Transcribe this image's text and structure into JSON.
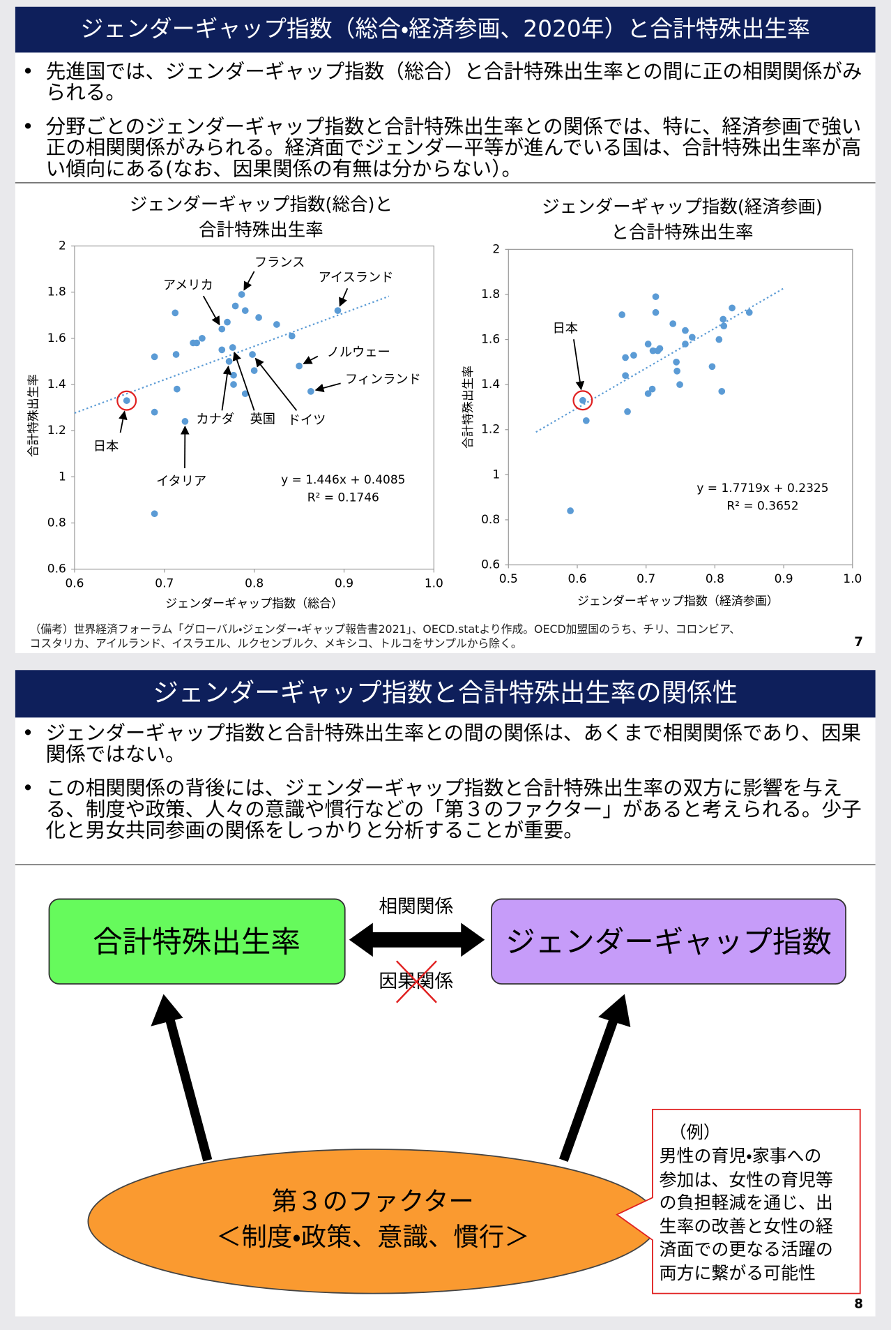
{
  "slide1": {
    "title": "ジェンダーギャップ指数（総合・経済参画、2020年）と合計特殊出生率",
    "bullets": [
      "先進国では、ジェンダーギャップ指数（総合）と合計特殊出生率との間に正の相関関係がみられる。",
      "分野ごとのジェンダーギャップ指数と合計特殊出生率との関係では、特に、経済参画で強い正の相関関係がみられる。経済面でジェンダー平等が進んでいる国は、合計特殊出生率が高い傾向にある(なお、因果関係の有無は分からない）。"
    ],
    "note": "（備考）世界経済フォーラム「グローバル・ジェンダー・ギャップ報告書2021」、OECD.statより作成。OECD加盟国のうち、チリ、コロンビア、\nコスタリカ、アイルランド、イスラエル、ルクセンブルク、メキシコ、トルコをサンプルから除く。",
    "page": "7"
  },
  "chart_data": [
    {
      "type": "scatter",
      "title": "ジェンダーギャップ指数(総合)と\n合計特殊出生率",
      "x_label": "ジェンダーギャップ指数（総合）",
      "y_label": "合計特殊出生率",
      "color": "#5b9bd5",
      "x": [
        0.658,
        0.689,
        0.689,
        0.689,
        0.712,
        0.713,
        0.714,
        0.723,
        0.732,
        0.736,
        0.742,
        0.764,
        0.77,
        0.764,
        0.772,
        0.776,
        0.777,
        0.777,
        0.779,
        0.786,
        0.79,
        0.79,
        0.798,
        0.8,
        0.805,
        0.825,
        0.842,
        0.85,
        0.863,
        0.893
      ],
      "values": [
        1.33,
        1.52,
        1.28,
        0.84,
        1.71,
        1.53,
        1.38,
        1.24,
        1.58,
        1.58,
        1.6,
        1.64,
        1.67,
        1.55,
        1.5,
        1.56,
        1.44,
        1.4,
        1.74,
        1.79,
        1.72,
        1.36,
        1.53,
        1.46,
        1.69,
        1.66,
        1.61,
        1.48,
        1.37,
        1.72
      ],
      "xlim": [
        0.6,
        1.0
      ],
      "ylim": [
        0.6,
        2
      ],
      "xticks": [
        0.6,
        0.7,
        0.8,
        0.9,
        {
          "value": 1,
          "label": "1.0"
        }
      ],
      "yticks": [
        0.6,
        0.8,
        1,
        1.2,
        1.4,
        1.6,
        1.8,
        2
      ],
      "grid": false,
      "trend": {
        "slope": 1.446,
        "intercept": 0.4085,
        "x": [
          0.6,
          0.95
        ]
      },
      "equation": "y = 1.446x + 0.4085",
      "r2": "R² = 0.1746",
      "annotations": [
        "日本",
        "イタリア",
        "アメリカ",
        "フランス",
        "アイスランド",
        "ノルウェー",
        "フィンランド",
        "カナダ",
        "英国",
        "ドイツ"
      ]
    },
    {
      "type": "scatter",
      "title": "ジェンダーギャップ指数(経済参画)\nと合計特殊出生率",
      "x_label": "ジェンダーギャップ指数（経済参画）",
      "y_label": "合計特殊出生率",
      "color": "#5b9bd5",
      "x": [
        0.608,
        0.59,
        0.613,
        0.665,
        0.67,
        0.67,
        0.673,
        0.682,
        0.703,
        0.703,
        0.71,
        0.709,
        0.714,
        0.714,
        0.717,
        0.72,
        0.739,
        0.744,
        0.745,
        0.749,
        0.757,
        0.757,
        0.767,
        0.796,
        0.806,
        0.81,
        0.812,
        0.813,
        0.825,
        0.85
      ],
      "values": [
        1.33,
        0.84,
        1.24,
        1.71,
        1.44,
        1.52,
        1.28,
        1.53,
        1.36,
        1.58,
        1.55,
        1.38,
        1.79,
        1.72,
        1.55,
        1.56,
        1.67,
        1.5,
        1.46,
        1.4,
        1.64,
        1.58,
        1.61,
        1.48,
        1.6,
        1.37,
        1.69,
        1.66,
        1.74,
        1.72
      ],
      "xlim": [
        0.5,
        1.0
      ],
      "ylim": [
        0.6,
        2
      ],
      "xticks": [
        0.5,
        0.6,
        0.7,
        0.8,
        0.9,
        {
          "value": 1,
          "label": "1.0"
        }
      ],
      "yticks": [
        0.6,
        0.8,
        1,
        1.2,
        1.4,
        1.6,
        1.8,
        2
      ],
      "grid": false,
      "trend": {
        "slope": 1.7719,
        "intercept": 0.2325,
        "x": [
          0.54,
          0.9
        ]
      },
      "equation": "y = 1.7719x + 0.2325",
      "r2": "R² = 0.3652",
      "annotations": [
        "日本"
      ]
    }
  ],
  "slide2": {
    "title": "ジェンダーギャップ指数と合計特殊出生率の関係性",
    "bullets": [
      "ジェンダーギャップ指数と合計特殊出生率との間の関係は、あくまで相関関係であり、因果関係ではない。",
      "この相関関係の背後には、ジェンダーギャップ指数と合計特殊出生率の双方に影響を与える、制度や政策、人々の意識や慣行などの「第３のファクター」があると考えられる。少子化と男女共同参画の関係をしっかりと分析することが重要。"
    ],
    "nodes": [
      "合計特殊出生率",
      "ジェンダーギャップ指数"
    ],
    "edge_labels": [
      "相関関係",
      "因果関係"
    ],
    "factor": {
      "title": "第３のファクター",
      "subtitle": "＜制度・政策、意識、慣行＞"
    },
    "example": {
      "heading": "（例）",
      "text": "男性の育児・家事への\n参加は、女性の育児等\nの負担軽減を通じ、出\n生率の改善と女性の経\n済面での更なる活躍の\n両方に繋がる可能性"
    },
    "page": "8"
  }
}
